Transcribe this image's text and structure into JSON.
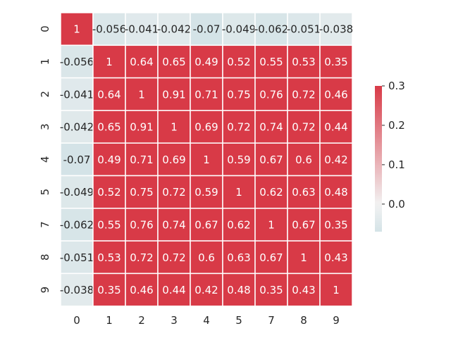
{
  "chart_data": {
    "type": "heatmap",
    "title": "",
    "xlabel": "",
    "ylabel": "",
    "row_labels": [
      "0",
      "1",
      "2",
      "3",
      "4",
      "5",
      "7",
      "8",
      "9"
    ],
    "col_labels": [
      "0",
      "1",
      "2",
      "3",
      "4",
      "5",
      "7",
      "8",
      "9"
    ],
    "values": [
      [
        1,
        -0.056,
        -0.041,
        -0.042,
        -0.07,
        -0.049,
        -0.062,
        -0.051,
        -0.038
      ],
      [
        -0.056,
        1,
        0.64,
        0.65,
        0.49,
        0.52,
        0.55,
        0.53,
        0.35
      ],
      [
        -0.041,
        0.64,
        1,
        0.91,
        0.71,
        0.75,
        0.76,
        0.72,
        0.46
      ],
      [
        -0.042,
        0.65,
        0.91,
        1,
        0.69,
        0.72,
        0.74,
        0.72,
        0.44
      ],
      [
        -0.07,
        0.49,
        0.71,
        0.69,
        1,
        0.59,
        0.67,
        0.6,
        0.42
      ],
      [
        -0.049,
        0.52,
        0.75,
        0.72,
        0.59,
        1,
        0.62,
        0.63,
        0.48
      ],
      [
        -0.062,
        0.55,
        0.76,
        0.74,
        0.67,
        0.62,
        1,
        0.67,
        0.35
      ],
      [
        -0.051,
        0.53,
        0.72,
        0.72,
        0.6,
        0.63,
        0.67,
        1,
        0.43
      ],
      [
        -0.038,
        0.35,
        0.46,
        0.44,
        0.42,
        0.48,
        0.35,
        0.43,
        1
      ]
    ],
    "annotations": [
      [
        "1",
        "-0.056",
        "-0.041",
        "-0.042",
        "-0.07",
        "-0.049",
        "-0.062",
        "-0.051",
        "-0.038"
      ],
      [
        "-0.056",
        "1",
        "0.64",
        "0.65",
        "0.49",
        "0.52",
        "0.55",
        "0.53",
        "0.35"
      ],
      [
        "-0.041",
        "0.64",
        "1",
        "0.91",
        "0.71",
        "0.75",
        "0.76",
        "0.72",
        "0.46"
      ],
      [
        "-0.042",
        "0.65",
        "0.91",
        "1",
        "0.69",
        "0.72",
        "0.74",
        "0.72",
        "0.44"
      ],
      [
        "-0.07",
        "0.49",
        "0.71",
        "0.69",
        "1",
        "0.59",
        "0.67",
        "0.6",
        "0.42"
      ],
      [
        "-0.049",
        "0.52",
        "0.75",
        "0.72",
        "0.59",
        "1",
        "0.62",
        "0.63",
        "0.48"
      ],
      [
        "-0.062",
        "0.55",
        "0.76",
        "0.74",
        "0.67",
        "0.62",
        "1",
        "0.67",
        "0.35"
      ],
      [
        "-0.051",
        "0.53",
        "0.72",
        "0.72",
        "0.6",
        "0.63",
        "0.67",
        "1",
        "0.43"
      ],
      [
        "-0.038",
        "0.35",
        "0.46",
        "0.44",
        "0.42",
        "0.48",
        "0.35",
        "0.43",
        "1"
      ]
    ],
    "vmin": -0.07,
    "vmax": 0.3,
    "colorbar": {
      "range": [
        -0.07,
        0.3
      ],
      "ticks": [
        0.0,
        0.1,
        0.2,
        0.3
      ],
      "tick_labels": [
        "0.0",
        "0.1",
        "0.2",
        "0.3"
      ]
    },
    "colors": {
      "low": "#d4e3e7",
      "mid": "#f2f2f2",
      "high": "#d83a47",
      "cell_border": "#ffffff",
      "text_dark": "#262626",
      "text_light": "#ffffff"
    },
    "grid": false,
    "legend": "colorbar-right"
  }
}
